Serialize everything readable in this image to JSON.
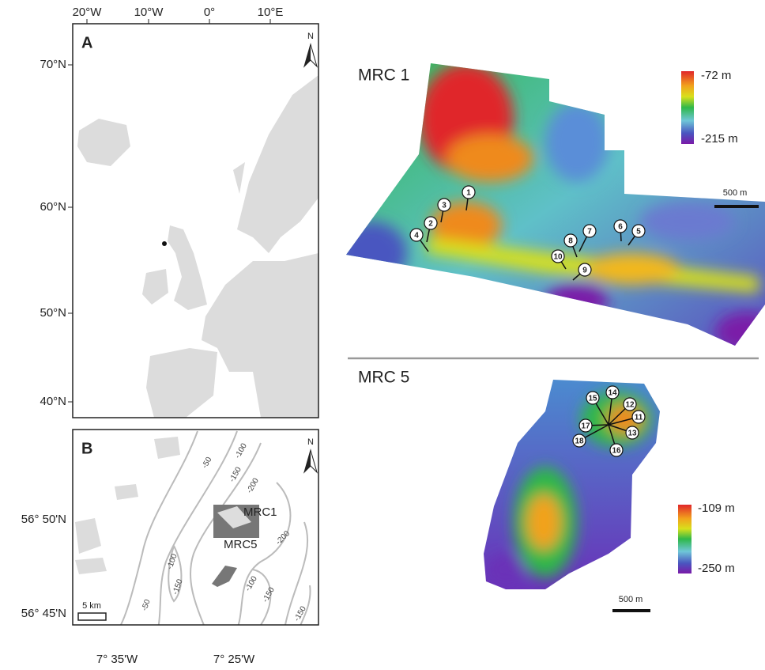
{
  "panel_a": {
    "label": "A",
    "north": "N",
    "top_ticks": [
      "20°W",
      "10°W",
      "0°",
      "10°E"
    ],
    "left_ticks": [
      "70°N",
      "60°N",
      "50°N",
      "40°N"
    ]
  },
  "panel_b": {
    "label": "B",
    "north": "N",
    "left_ticks": [
      "56° 50'N",
      "56° 45'N"
    ],
    "bottom_ticks": [
      "7° 35'W",
      "7° 25'W"
    ],
    "scale_bar": "5 km",
    "sites": [
      "MRC1",
      "MRC5"
    ],
    "contour_labels": [
      "-50",
      "-100",
      "-150",
      "-200",
      "-200",
      "-100",
      "-150",
      "-50",
      "-100",
      "-150",
      "-150"
    ]
  },
  "mrc1": {
    "title": "MRC 1",
    "scale_max": "-72 m",
    "scale_min": "-215 m",
    "scale_bar": "500 m",
    "markers": [
      "1",
      "2",
      "3",
      "4",
      "5",
      "6",
      "7",
      "8",
      "9",
      "10"
    ]
  },
  "mrc5": {
    "title": "MRC 5",
    "scale_max": "-109 m",
    "scale_min": "-250 m",
    "scale_bar": "500 m",
    "markers": [
      "11",
      "12",
      "13",
      "14",
      "15",
      "16",
      "17",
      "18"
    ]
  }
}
